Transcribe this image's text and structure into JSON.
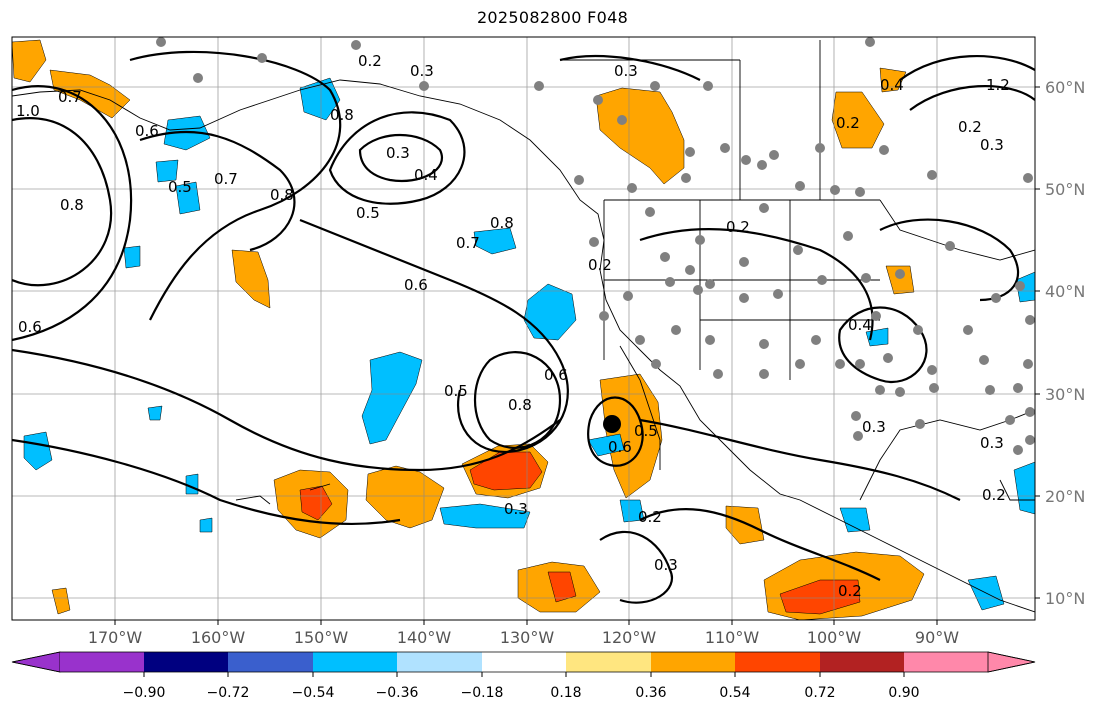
{
  "title": "2025082800 F048",
  "map": {
    "lon_labels": [
      "170°W",
      "160°W",
      "150°W",
      "140°W",
      "130°W",
      "120°W",
      "110°W",
      "100°W",
      "90°W"
    ],
    "lat_labels": [
      "60°N",
      "50°N",
      "40°N",
      "30°N",
      "20°N",
      "10°N"
    ],
    "contour_labels": [
      "0.2",
      "0.3",
      "0.3",
      "1.0",
      "0.7",
      "0.8",
      "0.6",
      "0.5",
      "0.7",
      "0.8",
      "0.3",
      "0.4",
      "0.5",
      "0.6",
      "0.7",
      "0.8",
      "0.2",
      "0.2",
      "0.3",
      "0.4",
      "0.2",
      "1.2",
      "0.6",
      "0.8",
      "0.5",
      "0.6",
      "0.8",
      "0.6",
      "0.5",
      "0.3",
      "0.2",
      "0.3",
      "0.2",
      "0.4",
      "0.3",
      "0.3",
      "0.2",
      "0.2"
    ],
    "station_marker": "storm-center",
    "overlay_colors": {
      "positive_light": "#ffa500",
      "positive_mid": "#ff4500",
      "negative": "#00bfff",
      "contour": "#000000",
      "grid": "#888888",
      "station": "#808080"
    }
  },
  "colorbar": {
    "colors": [
      "#9932cc",
      "#000080",
      "#3a5fcd",
      "#00bfff",
      "#b0e2ff",
      "#ffffff",
      "#ffe680",
      "#ffa500",
      "#ff4500",
      "#b22222",
      "#ff88aa"
    ],
    "tick_labels": [
      "−0.90",
      "−0.72",
      "−0.54",
      "−0.36",
      "−0.18",
      "0.18",
      "0.36",
      "0.54",
      "0.72",
      "0.90"
    ]
  }
}
